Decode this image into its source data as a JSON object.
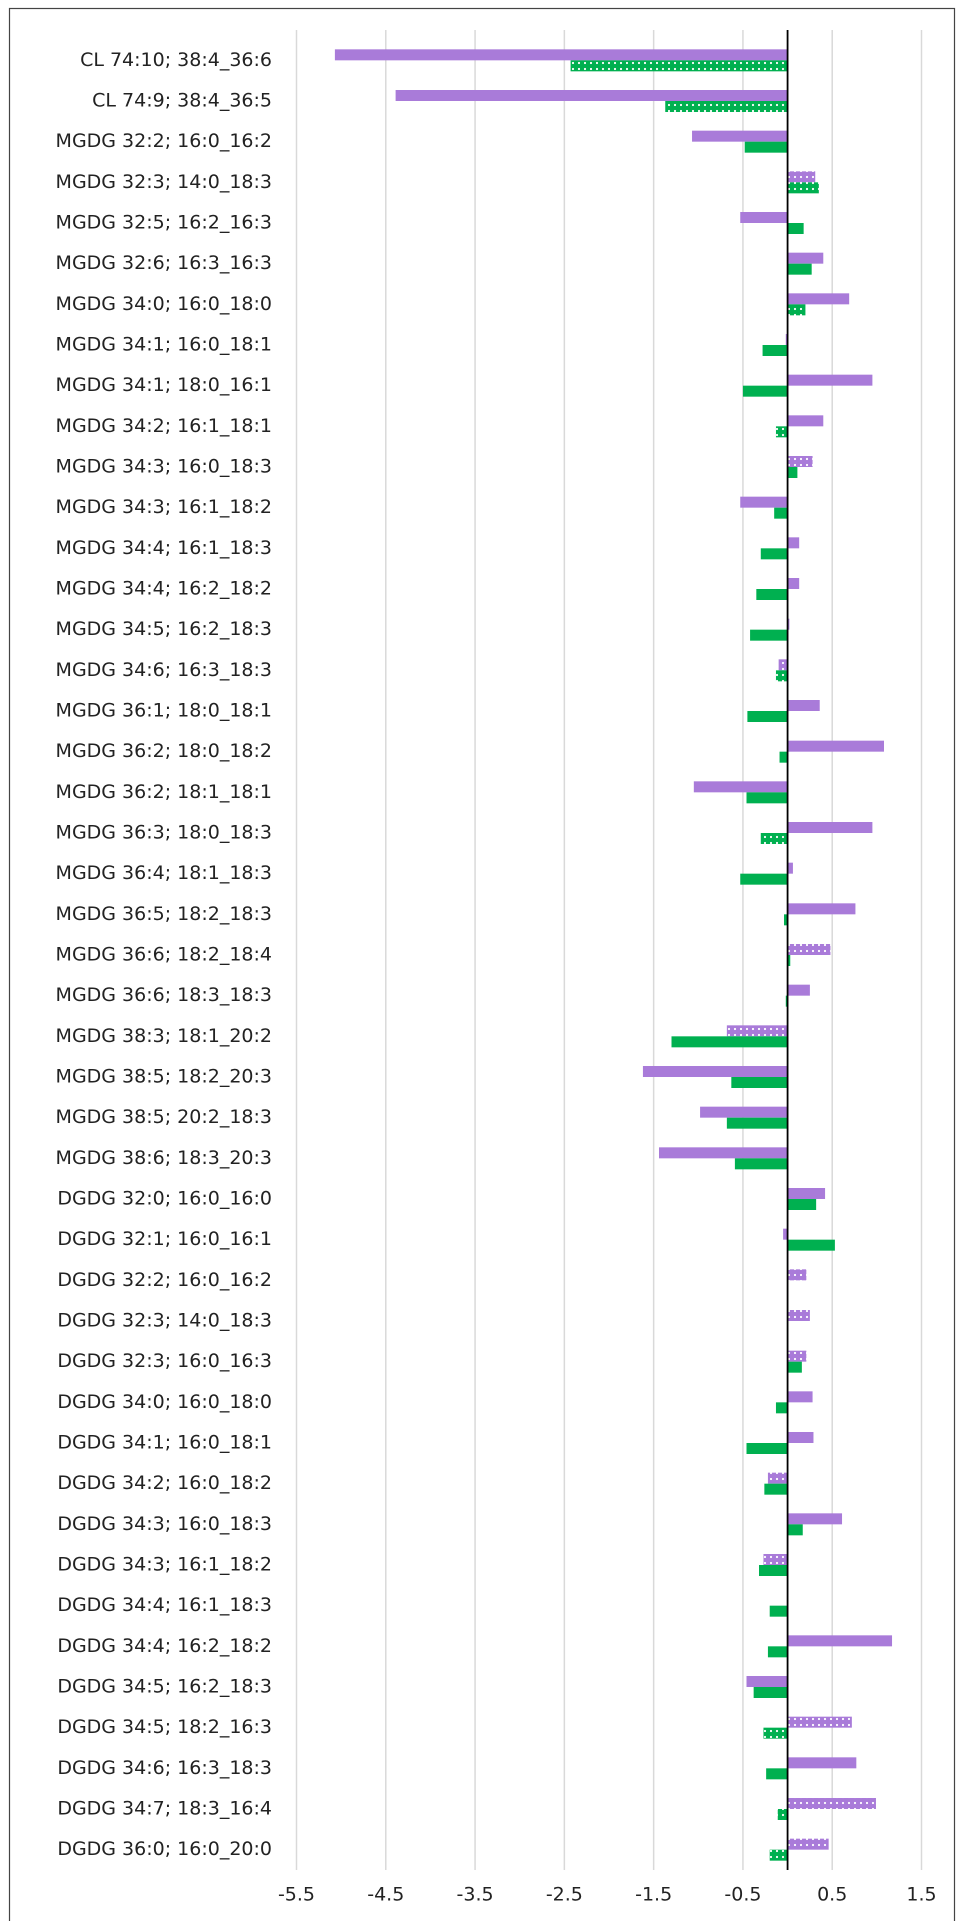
{
  "chart_data": {
    "type": "hbar",
    "categories": [
      "CL 74:10; 38:4_36:6",
      "CL 74:9; 38:4_36:5",
      "MGDG 32:2; 16:0_16:2",
      "MGDG 32:3; 14:0_18:3",
      "MGDG 32:5; 16:2_16:3",
      "MGDG 32:6; 16:3_16:3",
      "MGDG 34:0; 16:0_18:0",
      "MGDG 34:1; 16:0_18:1",
      "MGDG 34:1; 18:0_16:1",
      "MGDG 34:2; 16:1_18:1",
      "MGDG 34:3; 16:0_18:3",
      "MGDG 34:3; 16:1_18:2",
      "MGDG 34:4; 16:1_18:3",
      "MGDG 34:4; 16:2_18:2",
      "MGDG 34:5; 16:2_18:3",
      "MGDG 34:6; 16:3_18:3",
      "MGDG 36:1; 18:0_18:1",
      "MGDG 36:2; 18:0_18:2",
      "MGDG 36:2; 18:1_18:1",
      "MGDG 36:3; 18:0_18:3",
      "MGDG 36:4; 18:1_18:3",
      "MGDG 36:5; 18:2_18:3",
      "MGDG 36:6; 18:2_18:4",
      "MGDG 36:6; 18:3_18:3",
      "MGDG 38:3; 18:1_20:2",
      "MGDG 38:5; 18:2_20:3",
      "MGDG 38:5; 20:2_18:3",
      "MGDG 38:6; 18:3_20:3",
      "DGDG 32:0; 16:0_16:0",
      "DGDG 32:1; 16:0_16:1",
      "DGDG 32:2; 16:0_16:2",
      "DGDG 32:3; 14:0_18:3",
      "DGDG 32:3; 16:0_16:3",
      "DGDG 34:0; 16:0_18:0",
      "DGDG 34:1; 16:0_18:1",
      "DGDG 34:2; 16:0_18:2",
      "DGDG 34:3; 16:0_18:3",
      "DGDG 34:3; 16:1_18:2",
      "DGDG 34:4; 16:1_18:3",
      "DGDG 34:4; 16:2_18:2",
      "DGDG 34:5; 16:2_18:3",
      "DGDG 34:5; 18:2_16:3",
      "DGDG 34:6; 16:3_18:3",
      "DGDG 34:7; 18:3_16:4",
      "DGDG 36:0; 16:0_20:0"
    ],
    "series": [
      {
        "color": "#a97bd9",
        "values": [
          -5.07,
          -4.39,
          -1.07,
          0.31,
          -0.53,
          0.4,
          0.69,
          -0.02,
          0.95,
          0.4,
          0.28,
          -0.53,
          0.13,
          0.13,
          0.02,
          -0.1,
          0.36,
          1.08,
          -1.05,
          0.95,
          0.06,
          0.76,
          0.48,
          0.25,
          -0.68,
          -1.62,
          -0.98,
          -1.44,
          0.42,
          -0.05,
          0.21,
          0.25,
          0.21,
          0.28,
          0.29,
          -0.22,
          0.61,
          -0.27,
          0,
          1.17,
          -0.46,
          0.72,
          0.77,
          0.99,
          0.46
        ],
        "dotted": [
          false,
          false,
          false,
          true,
          false,
          false,
          false,
          false,
          false,
          false,
          true,
          false,
          false,
          false,
          false,
          true,
          false,
          false,
          false,
          false,
          false,
          false,
          true,
          false,
          true,
          false,
          false,
          false,
          false,
          false,
          true,
          true,
          true,
          false,
          false,
          true,
          false,
          true,
          false,
          false,
          false,
          true,
          false,
          true,
          true
        ]
      },
      {
        "color": "#00b050",
        "values": [
          -2.43,
          -1.37,
          -0.48,
          0.35,
          0.18,
          0.27,
          0.2,
          -0.28,
          -0.5,
          -0.13,
          0.11,
          -0.15,
          -0.3,
          -0.35,
          -0.42,
          -0.13,
          -0.45,
          -0.09,
          -0.46,
          -0.3,
          -0.53,
          -0.04,
          0.03,
          -0.02,
          -1.3,
          -0.63,
          -0.68,
          -0.59,
          0.32,
          0.53,
          0,
          0,
          0.16,
          -0.13,
          -0.46,
          -0.26,
          0.17,
          -0.32,
          -0.2,
          -0.22,
          -0.38,
          -0.27,
          -0.24,
          -0.11,
          -0.2
        ],
        "dotted": [
          true,
          true,
          false,
          true,
          false,
          false,
          true,
          false,
          false,
          true,
          false,
          false,
          false,
          false,
          false,
          true,
          false,
          false,
          false,
          true,
          false,
          false,
          false,
          false,
          false,
          false,
          false,
          false,
          false,
          false,
          false,
          false,
          false,
          false,
          false,
          false,
          false,
          false,
          false,
          false,
          false,
          true,
          false,
          true,
          true
        ]
      }
    ],
    "xlim": [
      -5.5,
      1.5
    ],
    "xticks": [
      -5.5,
      -4.5,
      -3.5,
      -2.5,
      -1.5,
      -0.5,
      0.5,
      1.5
    ],
    "grid": true
  }
}
